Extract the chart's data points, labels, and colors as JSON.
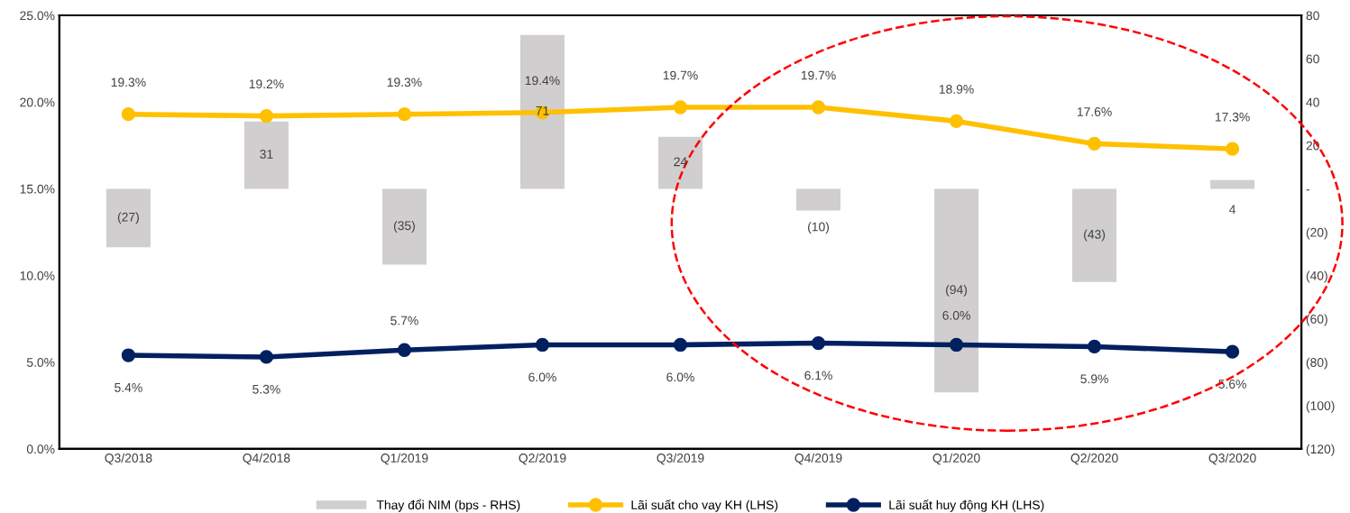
{
  "chart_data": {
    "type": "bar",
    "categories": [
      "Q3/2018",
      "Q4/2018",
      "Q1/2019",
      "Q2/2019",
      "Q3/2019",
      "Q4/2019",
      "Q1/2020",
      "Q2/2020",
      "Q3/2020"
    ],
    "series": [
      {
        "name": "Thay đổi NIM (bps - RHS)",
        "axis": "y2",
        "color": "#d0cece",
        "values": [
          -27,
          31,
          -35,
          71,
          24,
          -10,
          -94,
          -43,
          4
        ],
        "value_labels": [
          "(27)",
          "31",
          "(35)",
          "71",
          "24",
          "(10)",
          "(94)",
          "(43)",
          "4"
        ]
      },
      {
        "name": "Lãi suất cho vay KH (LHS)",
        "type": "line",
        "color": "#ffc000",
        "values": [
          19.3,
          19.2,
          19.3,
          19.4,
          19.7,
          19.7,
          18.9,
          17.6,
          17.3
        ],
        "value_labels": [
          "19.3%",
          "19.2%",
          "19.3%",
          "19.4%",
          "19.7%",
          "19.7%",
          "18.9%",
          "17.6%",
          "17.3%"
        ]
      },
      {
        "name": "Lãi suất huy động KH (LHS)",
        "type": "line",
        "color": "#002060",
        "values": [
          5.4,
          5.3,
          5.7,
          6.0,
          6.0,
          6.1,
          6.0,
          5.9,
          5.6
        ],
        "value_labels": [
          "5.4%",
          "5.3%",
          "5.7%",
          "6.0%",
          "6.0%",
          "6.1%",
          "6.0%",
          "5.9%",
          "5.6%"
        ]
      }
    ],
    "ylim": [
      0,
      25
    ],
    "yticks": [
      {
        "value": 0,
        "label": "0.0%"
      },
      {
        "value": 5,
        "label": "5.0%"
      },
      {
        "value": 10,
        "label": "10.0%"
      },
      {
        "value": 15,
        "label": "15.0%"
      },
      {
        "value": 20,
        "label": "20.0%"
      },
      {
        "value": 25,
        "label": "25.0%"
      }
    ],
    "y2lim": [
      -120,
      80
    ],
    "y2ticks": [
      {
        "value": -120,
        "label": "(120)"
      },
      {
        "value": -100,
        "label": "(100)"
      },
      {
        "value": -80,
        "label": "(80)"
      },
      {
        "value": -60,
        "label": "(60)"
      },
      {
        "value": -40,
        "label": "(40)"
      },
      {
        "value": -20,
        "label": "(20)"
      },
      {
        "value": 0,
        "label": "-"
      },
      20,
      40,
      60,
      80
    ],
    "marker": "circle",
    "line_style": "solid",
    "grid": false,
    "legend": "bottom"
  }
}
